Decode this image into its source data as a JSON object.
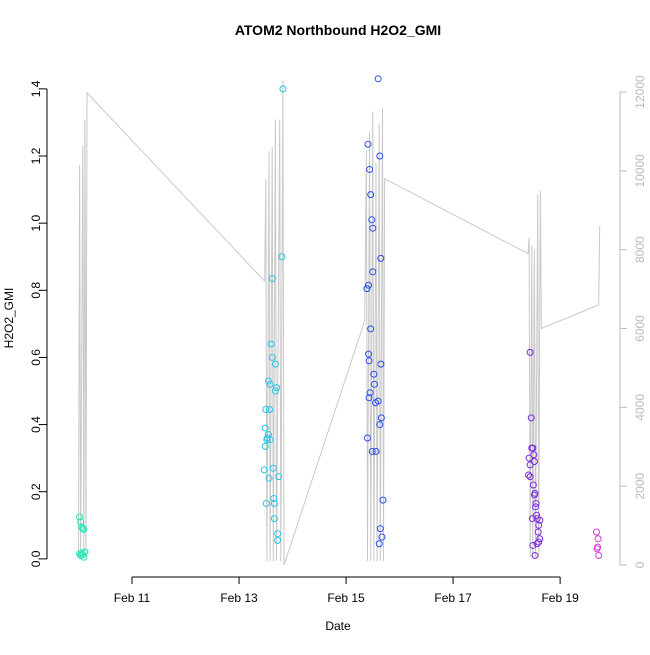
{
  "chart_data": {
    "type": "scatter",
    "title": "ATOM2 Northbound H2O2_GMI",
    "xlabel": "Date",
    "ylabel": "H2O2_GMI",
    "xlim": [
      9.636,
      20.1
    ],
    "ylim": [
      -0.054,
      1.486
    ],
    "y2lim": [
      -305,
      12812
    ],
    "xticks": [
      {
        "value": 11,
        "label": "Feb 11"
      },
      {
        "value": 13,
        "label": "Feb 13"
      },
      {
        "value": 15,
        "label": "Feb 15"
      },
      {
        "value": 17,
        "label": "Feb 17"
      },
      {
        "value": 19,
        "label": "Feb 19"
      }
    ],
    "yticks": [
      {
        "value": 0,
        "label": "0.0"
      },
      0.2,
      0.4,
      0.6,
      0.8,
      {
        "value": 1,
        "label": "1.0"
      },
      1.2,
      1.4
    ],
    "y2ticks": [
      0,
      2000,
      4000,
      6000,
      8000,
      10000,
      12000
    ],
    "y2color": "#bbbbbb",
    "series": [
      {
        "type": "line",
        "axis": "y2",
        "color": "#c8c8c8",
        "x": [
          10.0,
          10.02,
          10.04,
          10.08,
          10.1,
          10.12,
          10.14,
          10.16,
          13.48,
          13.5,
          13.52,
          13.56,
          13.58,
          13.62,
          13.64,
          13.68,
          13.7,
          13.76,
          13.78,
          13.82,
          13.84,
          15.35,
          15.38,
          15.4,
          15.44,
          15.46,
          15.5,
          15.52,
          15.56,
          15.58,
          15.62,
          15.64,
          15.68,
          15.7,
          15.72,
          18.4,
          18.42,
          18.44,
          18.47,
          18.49,
          18.52,
          18.54,
          18.58,
          18.6,
          18.63,
          18.65,
          19.72,
          19.74
        ],
        "values": [
          200,
          10150,
          200,
          10650,
          200,
          11300,
          300,
          11980,
          7200,
          9800,
          100,
          10500,
          100,
          10600,
          100,
          11300,
          100,
          11300,
          100,
          12300,
          0,
          6200,
          10500,
          100,
          11000,
          100,
          11500,
          100,
          10200,
          100,
          11200,
          100,
          11600,
          100,
          9800,
          7900,
          8300,
          200,
          8100,
          200,
          8000,
          200,
          9400,
          200,
          9500,
          6000,
          6600,
          8600
        ]
      },
      {
        "type": "points",
        "color": "#1de9b6",
        "x": [
          10.02,
          10.04,
          10.06,
          10.08,
          10.1,
          10.12,
          10.02,
          10.04,
          10.06,
          10.08,
          10.1,
          10.12
        ],
        "values": [
          0.125,
          0.11,
          0.095,
          0.09,
          0.088,
          0.02,
          0.015,
          0.01,
          0.018,
          0.012,
          0.005,
          0.02
        ]
      },
      {
        "type": "points",
        "color": "#29c5e6",
        "x": [
          13.47,
          13.5,
          13.49,
          13.52,
          13.49,
          13.53,
          13.55,
          13.51,
          13.56,
          13.55,
          13.58,
          13.6,
          13.62,
          13.57,
          13.58,
          13.62,
          13.64,
          13.65,
          13.66,
          13.66,
          13.68,
          13.68,
          13.7,
          13.74,
          13.72,
          13.72,
          13.8,
          13.82
        ],
        "values": [
          0.265,
          0.445,
          0.39,
          0.355,
          0.335,
          0.36,
          0.37,
          0.165,
          0.24,
          0.53,
          0.52,
          0.64,
          0.6,
          0.445,
          0.355,
          0.835,
          0.27,
          0.18,
          0.165,
          0.12,
          0.58,
          0.5,
          0.51,
          0.245,
          0.075,
          0.055,
          0.9,
          1.4
        ]
      },
      {
        "type": "points",
        "color": "#2a4fe8",
        "x": [
          15.41,
          15.4,
          15.39,
          15.42,
          15.42,
          15.43,
          15.44,
          15.46,
          15.46,
          15.48,
          15.5,
          15.5,
          15.45,
          15.43,
          15.49,
          15.52,
          15.53,
          15.55,
          15.6,
          15.56,
          15.6,
          15.63,
          15.63,
          15.65,
          15.65,
          15.66,
          15.64,
          15.62,
          15.67,
          15.69
        ],
        "values": [
          1.235,
          0.36,
          0.805,
          0.815,
          0.61,
          0.59,
          1.16,
          1.085,
          0.685,
          1.01,
          0.985,
          0.855,
          0.495,
          0.48,
          0.32,
          0.55,
          0.52,
          0.465,
          1.43,
          0.32,
          0.47,
          1.2,
          0.4,
          0.895,
          0.58,
          0.42,
          0.09,
          0.045,
          0.065,
          0.175
        ]
      },
      {
        "type": "points",
        "color": "#7b2be0",
        "x": [
          18.44,
          18.42,
          18.41,
          18.44,
          18.46,
          18.47,
          18.49,
          18.44,
          18.52,
          18.48,
          18.49,
          18.51,
          18.5,
          18.52,
          18.53,
          18.53,
          18.55,
          18.54,
          18.56,
          18.57,
          18.57,
          18.6,
          18.62,
          18.6,
          18.59,
          18.62
        ],
        "values": [
          0.615,
          0.3,
          0.25,
          0.245,
          0.42,
          0.33,
          0.33,
          0.28,
          0.29,
          0.12,
          0.04,
          0.31,
          0.22,
          0.19,
          0.195,
          0.01,
          0.165,
          0.155,
          0.13,
          0.12,
          0.045,
          0.05,
          0.06,
          0.1,
          0.08,
          0.115
        ]
      },
      {
        "type": "points",
        "color": "#d73bd8",
        "x": [
          19.68,
          19.71,
          19.69,
          19.7,
          19.72
        ],
        "values": [
          0.08,
          0.06,
          0.03,
          0.035,
          0.01
        ]
      }
    ]
  }
}
